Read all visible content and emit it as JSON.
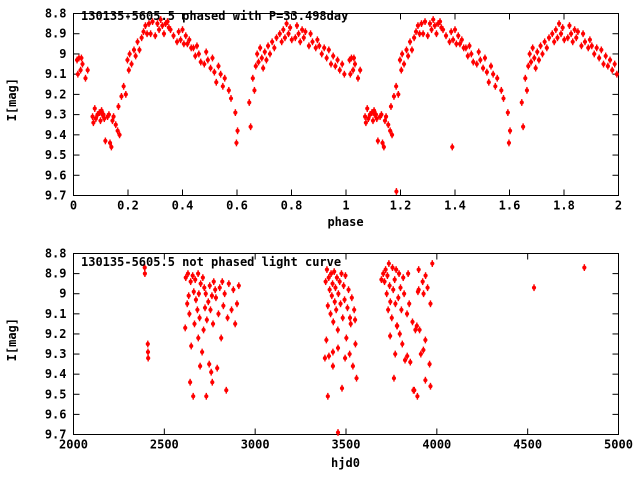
{
  "figure": {
    "background": "#ffffff",
    "axis_color": "#000000",
    "point_color": "#ff0000",
    "star_id": "130135-5605.5",
    "top_title": "130135-5605.5 phased with P=33.498day",
    "bottom_title": "130135-5605.5 not phased light curve",
    "top_xlabel": "phase",
    "bottom_xlabel": "hjd0",
    "ylabel": "I[mag]"
  },
  "chart_data": [
    {
      "type": "scatter",
      "panel": "top",
      "title": "130135-5605.5 phased with P=33.498day",
      "xlabel": "phase",
      "ylabel": "I[mag]",
      "period_days": 33.498,
      "xlim": [
        0,
        2
      ],
      "ylim": [
        8.8,
        9.7
      ],
      "y_direction": "down",
      "grid": false,
      "legend": "none",
      "xticks": {
        "values": [
          0,
          0.2,
          0.4,
          0.6,
          0.8,
          1,
          1.2,
          1.4,
          1.6,
          1.8,
          2
        ],
        "labels": [
          "0",
          "0.2",
          "0.4",
          "0.6",
          "0.8",
          "1",
          "1.2",
          "1.4",
          "1.6",
          "1.8",
          "2"
        ]
      },
      "yticks": {
        "values": [
          8.8,
          8.9,
          9.0,
          9.1,
          9.2,
          9.3,
          9.4,
          9.5,
          9.6,
          9.7
        ],
        "labels": [
          "8.8",
          "8.9",
          "9",
          "9.1",
          "9.2",
          "9.3",
          "9.4",
          "9.5",
          "9.6",
          "9.7"
        ]
      },
      "phase_offsets": [
        0,
        1
      ],
      "points": [
        [
          0.013,
          9.03
        ],
        [
          0.016,
          9.1
        ],
        [
          0.02,
          9.02
        ],
        [
          0.026,
          9.08
        ],
        [
          0.029,
          9.02
        ],
        [
          0.033,
          9.05
        ],
        [
          0.044,
          9.12
        ],
        [
          0.052,
          9.08
        ],
        [
          0.07,
          9.31
        ],
        [
          0.073,
          9.34
        ],
        [
          0.078,
          9.27
        ],
        [
          0.082,
          9.32
        ],
        [
          0.088,
          9.3
        ],
        [
          0.095,
          9.29
        ],
        [
          0.099,
          9.33
        ],
        [
          0.103,
          9.28
        ],
        [
          0.106,
          9.3
        ],
        [
          0.11,
          9.3
        ],
        [
          0.113,
          9.32
        ],
        [
          0.117,
          9.43
        ],
        [
          0.125,
          9.31
        ],
        [
          0.13,
          9.3
        ],
        [
          0.134,
          9.44
        ],
        [
          0.139,
          9.46
        ],
        [
          0.143,
          9.33
        ],
        [
          0.147,
          9.31
        ],
        [
          0.155,
          9.35
        ],
        [
          0.162,
          9.38
        ],
        [
          0.169,
          9.4
        ],
        [
          0.165,
          9.26
        ],
        [
          0.176,
          9.21
        ],
        [
          0.184,
          9.16
        ],
        [
          0.192,
          9.2
        ],
        [
          0.198,
          9.03
        ],
        [
          0.203,
          9.08
        ],
        [
          0.206,
          9.0
        ],
        [
          0.213,
          9.05
        ],
        [
          0.222,
          8.98
        ],
        [
          0.228,
          9.01
        ],
        [
          0.235,
          8.94
        ],
        [
          0.242,
          8.98
        ],
        [
          0.25,
          8.92
        ],
        [
          0.257,
          8.89
        ],
        [
          0.264,
          8.86
        ],
        [
          0.27,
          8.9
        ],
        [
          0.277,
          8.85
        ],
        [
          0.283,
          8.9
        ],
        [
          0.29,
          8.84
        ],
        [
          0.3,
          8.91
        ],
        [
          0.308,
          8.85
        ],
        [
          0.314,
          8.88
        ],
        [
          0.32,
          8.83
        ],
        [
          0.326,
          8.86
        ],
        [
          0.332,
          8.9
        ],
        [
          0.338,
          8.85
        ],
        [
          0.345,
          8.84
        ],
        [
          0.35,
          8.87
        ],
        [
          0.356,
          8.88
        ],
        [
          0.367,
          8.91
        ],
        [
          0.38,
          8.94
        ],
        [
          0.386,
          8.89
        ],
        [
          0.393,
          8.93
        ],
        [
          0.4,
          8.88
        ],
        [
          0.405,
          8.95
        ],
        [
          0.412,
          8.91
        ],
        [
          0.418,
          8.95
        ],
        [
          0.425,
          8.93
        ],
        [
          0.432,
          8.97
        ],
        [
          0.44,
          8.97
        ],
        [
          0.447,
          9.01
        ],
        [
          0.453,
          8.96
        ],
        [
          0.46,
          9.0
        ],
        [
          0.467,
          9.04
        ],
        [
          0.48,
          9.05
        ],
        [
          0.487,
          8.99
        ],
        [
          0.493,
          9.03
        ],
        [
          0.503,
          9.07
        ],
        [
          0.51,
          9.02
        ],
        [
          0.517,
          9.09
        ],
        [
          0.524,
          9.14
        ],
        [
          0.532,
          9.06
        ],
        [
          0.54,
          9.1
        ],
        [
          0.548,
          9.16
        ],
        [
          0.555,
          9.12
        ],
        [
          0.57,
          9.18
        ],
        [
          0.578,
          9.22
        ],
        [
          0.594,
          9.29
        ],
        [
          0.598,
          9.44
        ],
        [
          0.602,
          9.38
        ],
        [
          0.645,
          9.24
        ],
        [
          0.65,
          9.36
        ],
        [
          0.658,
          9.12
        ],
        [
          0.664,
          9.18
        ],
        [
          0.669,
          9.06
        ],
        [
          0.674,
          9.0
        ],
        [
          0.679,
          9.04
        ],
        [
          0.685,
          8.97
        ],
        [
          0.691,
          9.02
        ],
        [
          0.696,
          9.07
        ],
        [
          0.702,
          8.99
        ],
        [
          0.708,
          9.03
        ],
        [
          0.714,
          8.96
        ],
        [
          0.721,
          9.0
        ],
        [
          0.729,
          8.94
        ],
        [
          0.737,
          8.97
        ],
        [
          0.745,
          8.92
        ],
        [
          0.757,
          8.9
        ],
        [
          0.764,
          8.94
        ],
        [
          0.77,
          8.88
        ],
        [
          0.776,
          8.92
        ],
        [
          0.782,
          8.85
        ],
        [
          0.789,
          8.9
        ],
        [
          0.795,
          8.87
        ],
        [
          0.801,
          8.93
        ],
        [
          0.814,
          8.92
        ],
        [
          0.82,
          8.86
        ],
        [
          0.826,
          8.9
        ],
        [
          0.832,
          8.94
        ],
        [
          0.839,
          8.88
        ],
        [
          0.845,
          8.92
        ],
        [
          0.851,
          8.89
        ],
        [
          0.864,
          8.96
        ],
        [
          0.87,
          8.9
        ],
        [
          0.877,
          8.94
        ],
        [
          0.889,
          8.97
        ],
        [
          0.895,
          8.93
        ],
        [
          0.902,
          8.96
        ],
        [
          0.911,
          9.0
        ],
        [
          0.92,
          8.97
        ],
        [
          0.929,
          9.02
        ],
        [
          0.937,
          8.98
        ],
        [
          0.945,
          9.05
        ],
        [
          0.953,
          9.01
        ],
        [
          0.961,
          9.06
        ],
        [
          0.969,
          9.03
        ],
        [
          0.977,
          9.08
        ],
        [
          0.986,
          9.05
        ],
        [
          0.994,
          9.1
        ]
      ],
      "extra_points": [
        [
          1.185,
          9.68
        ],
        [
          1.39,
          9.46
        ]
      ]
    },
    {
      "type": "scatter",
      "panel": "bottom",
      "title": "130135-5605.5 not phased light curve",
      "xlabel": "hjd0",
      "ylabel": "I[mag]",
      "xlim": [
        2000,
        5000
      ],
      "ylim": [
        8.8,
        9.7
      ],
      "y_direction": "down",
      "grid": false,
      "legend": "none",
      "xticks": {
        "values": [
          2000,
          2500,
          3000,
          3500,
          4000,
          4500,
          5000
        ],
        "labels": [
          "2000",
          "2500",
          "3000",
          "3500",
          "4000",
          "4500",
          "5000"
        ]
      },
      "yticks": {
        "values": [
          8.8,
          8.9,
          9.0,
          9.1,
          9.2,
          9.3,
          9.4,
          9.5,
          9.6,
          9.7
        ],
        "labels": [
          "8.8",
          "8.9",
          "9",
          "9.1",
          "9.2",
          "9.3",
          "9.4",
          "9.5",
          "9.6",
          "9.7"
        ]
      },
      "phase_offsets": [
        0
      ],
      "points": [
        [
          2392,
          8.87
        ],
        [
          2393,
          8.9
        ],
        [
          2409,
          9.25
        ],
        [
          2410,
          9.29
        ],
        [
          2411,
          9.32
        ],
        [
          2615,
          9.17
        ],
        [
          2618,
          8.92
        ],
        [
          2626,
          9.05
        ],
        [
          2630,
          8.9
        ],
        [
          2634,
          9.01
        ],
        [
          2638,
          9.1
        ],
        [
          2642,
          9.44
        ],
        [
          2645,
          8.94
        ],
        [
          2648,
          9.26
        ],
        [
          2656,
          8.91
        ],
        [
          2659,
          9.51
        ],
        [
          2662,
          8.99
        ],
        [
          2666,
          9.15
        ],
        [
          2670,
          8.93
        ],
        [
          2674,
          9.03
        ],
        [
          2682,
          9.08
        ],
        [
          2686,
          8.9
        ],
        [
          2687,
          9.22
        ],
        [
          2690,
          9.0
        ],
        [
          2694,
          9.12
        ],
        [
          2697,
          9.36
        ],
        [
          2700,
          8.95
        ],
        [
          2708,
          9.29
        ],
        [
          2712,
          8.92
        ],
        [
          2716,
          9.18
        ],
        [
          2720,
          8.97
        ],
        [
          2724,
          9.07
        ],
        [
          2728,
          9.0
        ],
        [
          2731,
          9.51
        ],
        [
          2734,
          9.13
        ],
        [
          2742,
          9.04
        ],
        [
          2747,
          9.35
        ],
        [
          2750,
          8.96
        ],
        [
          2754,
          9.08
        ],
        [
          2758,
          9.39
        ],
        [
          2762,
          9.01
        ],
        [
          2764,
          9.44
        ],
        [
          2768,
          9.15
        ],
        [
          2772,
          8.94
        ],
        [
          2780,
          8.98
        ],
        [
          2784,
          9.02
        ],
        [
          2791,
          9.37
        ],
        [
          2798,
          9.1
        ],
        [
          2805,
          8.97
        ],
        [
          2813,
          9.22
        ],
        [
          2819,
          8.94
        ],
        [
          2825,
          9.06
        ],
        [
          2832,
          9.0
        ],
        [
          2841,
          9.48
        ],
        [
          2848,
          9.12
        ],
        [
          2855,
          8.95
        ],
        [
          2870,
          9.08
        ],
        [
          2880,
          8.98
        ],
        [
          2890,
          9.15
        ],
        [
          2900,
          9.05
        ],
        [
          2910,
          8.96
        ],
        [
          3384,
          9.32
        ],
        [
          3388,
          8.94
        ],
        [
          3392,
          9.23
        ],
        [
          3395,
          8.88
        ],
        [
          3400,
          9.06
        ],
        [
          3400,
          9.51
        ],
        [
          3405,
          8.92
        ],
        [
          3406,
          9.31
        ],
        [
          3410,
          8.98
        ],
        [
          3415,
          9.1
        ],
        [
          3418,
          8.9
        ],
        [
          3422,
          9.01
        ],
        [
          3426,
          8.95
        ],
        [
          3428,
          9.29
        ],
        [
          3428,
          9.36
        ],
        [
          3430,
          9.14
        ],
        [
          3435,
          8.89
        ],
        [
          3438,
          9.04
        ],
        [
          3442,
          8.97
        ],
        [
          3446,
          9.08
        ],
        [
          3450,
          8.92
        ],
        [
          3455,
          9.18
        ],
        [
          3456,
          9.27
        ],
        [
          3456,
          9.69
        ],
        [
          3458,
          9.0
        ],
        [
          3465,
          8.94
        ],
        [
          3470,
          9.05
        ],
        [
          3475,
          8.9
        ],
        [
          3478,
          9.47
        ],
        [
          3482,
          9.12
        ],
        [
          3487,
          8.96
        ],
        [
          3492,
          9.03
        ],
        [
          3495,
          9.32
        ],
        [
          3497,
          8.91
        ],
        [
          3502,
          9.22
        ],
        [
          3508,
          9.07
        ],
        [
          3514,
          8.98
        ],
        [
          3520,
          9.3
        ],
        [
          3522,
          9.12
        ],
        [
          3526,
          9.15
        ],
        [
          3532,
          9.02
        ],
        [
          3538,
          9.36
        ],
        [
          3545,
          9.08
        ],
        [
          3550,
          9.13
        ],
        [
          3552,
          9.25
        ],
        [
          3558,
          9.42
        ],
        [
          3695,
          8.93
        ],
        [
          3705,
          8.9
        ],
        [
          3712,
          8.94
        ],
        [
          3718,
          8.88
        ],
        [
          3724,
          9.0
        ],
        [
          3728,
          8.91
        ],
        [
          3732,
          9.08
        ],
        [
          3736,
          8.85
        ],
        [
          3740,
          8.96
        ],
        [
          3743,
          9.21
        ],
        [
          3744,
          9.04
        ],
        [
          3752,
          9.12
        ],
        [
          3756,
          8.87
        ],
        [
          3760,
          8.98
        ],
        [
          3764,
          9.42
        ],
        [
          3768,
          8.93
        ],
        [
          3771,
          9.3
        ],
        [
          3772,
          9.05
        ],
        [
          3776,
          8.88
        ],
        [
          3780,
          9.16
        ],
        [
          3782,
          9.16
        ],
        [
          3788,
          9.02
        ],
        [
          3792,
          8.9
        ],
        [
          3796,
          9.2
        ],
        [
          3800,
          8.97
        ],
        [
          3805,
          9.08
        ],
        [
          3810,
          9.25
        ],
        [
          3815,
          8.92
        ],
        [
          3820,
          9.0
        ],
        [
          3825,
          9.33
        ],
        [
          3836,
          9.1
        ],
        [
          3837,
          9.31
        ],
        [
          3842,
          8.9
        ],
        [
          3848,
          9.05
        ],
        [
          3854,
          9.34
        ],
        [
          3866,
          9.14
        ],
        [
          3871,
          9.48
        ],
        [
          3876,
          9.48
        ],
        [
          3882,
          9.18
        ],
        [
          3890,
          9.16
        ],
        [
          3893,
          9.51
        ],
        [
          3896,
          8.99
        ],
        [
          3900,
          8.88
        ],
        [
          3900,
          8.98
        ],
        [
          3905,
          9.18
        ],
        [
          3912,
          9.3
        ],
        [
          3922,
          8.94
        ],
        [
          3926,
          9.28
        ],
        [
          3927,
          9.0
        ],
        [
          3937,
          9.23
        ],
        [
          3937,
          9.43
        ],
        [
          3938,
          8.91
        ],
        [
          3949,
          8.97
        ],
        [
          3960,
          9.35
        ],
        [
          3965,
          9.05
        ],
        [
          3965,
          9.46
        ],
        [
          3975,
          8.85
        ],
        [
          4535,
          8.97
        ],
        [
          4812,
          8.87
        ]
      ],
      "extra_points": []
    }
  ]
}
